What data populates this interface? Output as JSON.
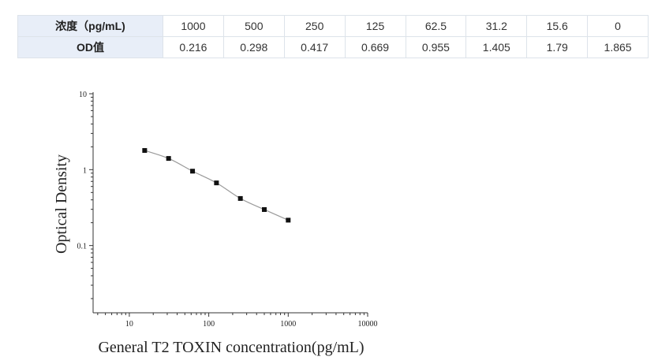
{
  "table": {
    "row_headers": [
      "浓度（pg/mL)",
      "OD值"
    ],
    "concentration": [
      "1000",
      "500",
      "250",
      "125",
      "62.5",
      "31.2",
      "15.6",
      "0"
    ],
    "od": [
      "0.216",
      "0.298",
      "0.417",
      "0.669",
      "0.955",
      "1.405",
      "1.79",
      "1.865"
    ]
  },
  "chart_data": {
    "type": "scatter",
    "x_scale": "log",
    "y_scale": "log",
    "xlabel": "General T2 TOXIN concentration(pg/mL)",
    "ylabel": "Optical Density",
    "xlim": [
      3.5,
      10000
    ],
    "ylim": [
      0.013,
      10
    ],
    "x_ticks": [
      "10",
      "100",
      "1000",
      "10000"
    ],
    "y_ticks": [
      "0.1",
      "1",
      "10"
    ],
    "grid": false,
    "marker": "square",
    "fit_line": true,
    "series": [
      {
        "x": [
          15.6,
          31.2,
          62.5,
          125,
          250,
          500,
          1000
        ],
        "y": [
          1.79,
          1.405,
          0.955,
          0.669,
          0.417,
          0.298,
          0.216
        ]
      }
    ]
  }
}
